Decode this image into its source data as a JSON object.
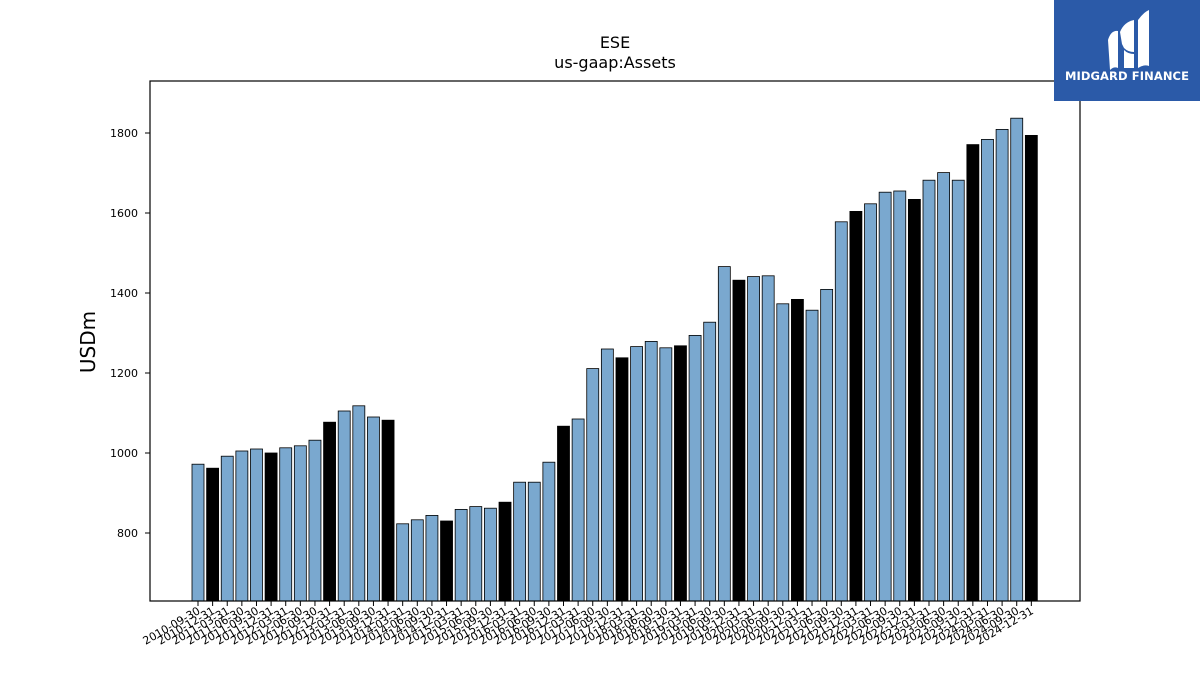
{
  "chart_data": {
    "type": "bar",
    "title": "ESE",
    "subtitle": "us-gaap:Assets",
    "xlabel": "",
    "ylabel": "USDm",
    "ylim": [
      630,
      1930
    ],
    "yticks": [
      800,
      1000,
      1200,
      1400,
      1600,
      1800
    ],
    "grid": false,
    "colors": {
      "quarterly": "#7aa8cf",
      "annual": "#000000",
      "edge": "#000000"
    },
    "categories": [
      "2010-09-30",
      "2010-12-31",
      "2011-03-31",
      "2011-06-30",
      "2011-09-30",
      "2011-12-31",
      "2012-03-31",
      "2012-06-30",
      "2012-09-30",
      "2012-12-31",
      "2013-03-31",
      "2013-06-30",
      "2013-09-30",
      "2013-12-31",
      "2014-03-31",
      "2014-06-30",
      "2014-09-30",
      "2014-12-31",
      "2015-03-31",
      "2015-06-30",
      "2015-09-30",
      "2015-12-31",
      "2016-03-31",
      "2016-06-30",
      "2016-09-30",
      "2016-12-31",
      "2017-03-31",
      "2017-06-30",
      "2017-09-30",
      "2017-12-31",
      "2018-03-31",
      "2018-06-30",
      "2018-09-30",
      "2018-12-31",
      "2019-03-31",
      "2019-06-30",
      "2019-09-30",
      "2019-12-31",
      "2020-03-31",
      "2020-06-30",
      "2020-09-30",
      "2020-12-31",
      "2021-03-31",
      "2021-06-30",
      "2021-09-30",
      "2021-12-31",
      "2022-03-31",
      "2022-06-30",
      "2022-09-30",
      "2022-12-31",
      "2023-03-31",
      "2023-06-30",
      "2023-09-30",
      "2023-12-31",
      "2024-03-31",
      "2024-06-30",
      "2024-09-30",
      "2024-12-31"
    ],
    "values": [
      972,
      962,
      992,
      1005,
      1010,
      1000,
      1013,
      1018,
      1032,
      1077,
      1105,
      1118,
      1090,
      1082,
      823,
      833,
      844,
      830,
      859,
      866,
      862,
      877,
      927,
      927,
      977,
      1067,
      1085,
      1211,
      1260,
      1238,
      1266,
      1279,
      1263,
      1268,
      1294,
      1327,
      1466,
      1432,
      1441,
      1443,
      1373,
      1384,
      1357,
      1409,
      1578,
      1604,
      1623,
      1652,
      1655,
      1634,
      1682,
      1701,
      1682,
      1771,
      1784,
      1809,
      1837,
      1794
    ],
    "annual_flags": [
      false,
      true,
      false,
      false,
      false,
      true,
      false,
      false,
      false,
      true,
      false,
      false,
      false,
      true,
      false,
      false,
      false,
      true,
      false,
      false,
      false,
      true,
      false,
      false,
      false,
      true,
      false,
      false,
      false,
      true,
      false,
      false,
      false,
      true,
      false,
      false,
      false,
      true,
      false,
      false,
      false,
      true,
      false,
      false,
      false,
      true,
      false,
      false,
      false,
      true,
      false,
      false,
      false,
      true,
      false,
      false,
      false,
      true
    ]
  },
  "logo": {
    "text": "MIDGARD FINANCE"
  }
}
